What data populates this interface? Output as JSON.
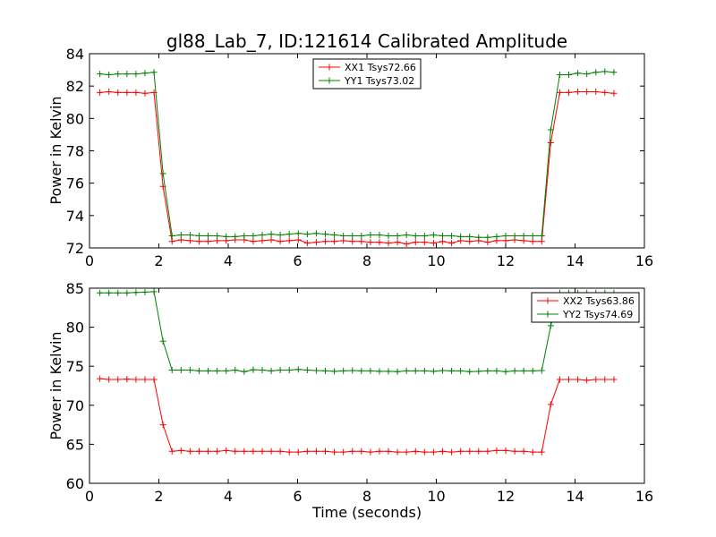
{
  "title": "gl88_Lab_7, ID:121614 Calibrated Amplitude",
  "colors": {
    "red": "#ff0000",
    "green": "#008000"
  },
  "chart_data": [
    {
      "type": "line",
      "title": "gl88_Lab_7, ID:121614 Calibrated Amplitude",
      "xlabel": "",
      "ylabel": "Power in Kelvin",
      "xlim": [
        0,
        16
      ],
      "ylim": [
        72,
        84
      ],
      "xticks": [
        "0",
        "2",
        "4",
        "6",
        "8",
        "10",
        "12",
        "14",
        "16"
      ],
      "yticks": [
        "72",
        "74",
        "76",
        "78",
        "80",
        "82",
        "84"
      ],
      "grid": false,
      "legend_position": "top-center",
      "x": [
        0.3,
        0.56,
        0.82,
        1.08,
        1.34,
        1.6,
        1.86,
        2.12,
        2.38,
        2.64,
        2.9,
        3.16,
        3.42,
        3.68,
        3.94,
        4.2,
        4.46,
        4.72,
        4.98,
        5.24,
        5.5,
        5.76,
        6.02,
        6.28,
        6.54,
        6.8,
        7.06,
        7.32,
        7.58,
        7.84,
        8.1,
        8.36,
        8.62,
        8.88,
        9.14,
        9.4,
        9.66,
        9.92,
        10.18,
        10.44,
        10.7,
        10.96,
        11.22,
        11.48,
        11.74,
        12.0,
        12.26,
        12.52,
        12.78,
        13.04,
        13.3,
        13.56,
        13.82,
        14.08,
        14.34,
        14.6,
        14.86,
        15.12
      ],
      "series": [
        {
          "name": "XX1 Tsys72.66",
          "color": "#ff0000",
          "values": [
            81.6,
            81.65,
            81.6,
            81.6,
            81.6,
            81.55,
            81.6,
            75.8,
            72.4,
            72.5,
            72.45,
            72.4,
            72.4,
            72.45,
            72.45,
            72.5,
            72.5,
            72.4,
            72.45,
            72.5,
            72.4,
            72.45,
            72.5,
            72.3,
            72.35,
            72.4,
            72.4,
            72.45,
            72.4,
            72.4,
            72.35,
            72.35,
            72.3,
            72.35,
            72.25,
            72.35,
            72.35,
            72.3,
            72.4,
            72.3,
            72.45,
            72.4,
            72.45,
            72.35,
            72.45,
            72.45,
            72.5,
            72.45,
            72.4,
            72.4,
            78.5,
            81.6,
            81.6,
            81.65,
            81.65,
            81.65,
            81.6,
            81.55
          ]
        },
        {
          "name": "YY1 Tsys73.02",
          "color": "#008000",
          "values": [
            82.75,
            82.7,
            82.75,
            82.75,
            82.75,
            82.8,
            82.85,
            76.6,
            72.75,
            72.8,
            72.8,
            72.75,
            72.75,
            72.75,
            72.7,
            72.7,
            72.75,
            72.75,
            72.8,
            72.85,
            72.8,
            72.85,
            72.9,
            72.85,
            72.9,
            72.85,
            72.8,
            72.75,
            72.75,
            72.75,
            72.8,
            72.8,
            72.75,
            72.75,
            72.8,
            72.75,
            72.75,
            72.8,
            72.75,
            72.75,
            72.7,
            72.7,
            72.65,
            72.65,
            72.7,
            72.75,
            72.75,
            72.75,
            72.75,
            72.75,
            79.3,
            82.7,
            82.7,
            82.8,
            82.75,
            82.85,
            82.9,
            82.85
          ]
        }
      ]
    },
    {
      "type": "line",
      "title": "",
      "xlabel": "Time (seconds)",
      "ylabel": "Power in Kelvin",
      "xlim": [
        0,
        16
      ],
      "ylim": [
        60,
        85
      ],
      "xticks": [
        "0",
        "2",
        "4",
        "6",
        "8",
        "10",
        "12",
        "14",
        "16"
      ],
      "yticks": [
        "60",
        "65",
        "70",
        "75",
        "80",
        "85"
      ],
      "grid": false,
      "legend_position": "top-right",
      "x": [
        0.3,
        0.56,
        0.82,
        1.08,
        1.34,
        1.6,
        1.86,
        2.12,
        2.38,
        2.64,
        2.9,
        3.16,
        3.42,
        3.68,
        3.94,
        4.2,
        4.46,
        4.72,
        4.98,
        5.24,
        5.5,
        5.76,
        6.02,
        6.28,
        6.54,
        6.8,
        7.06,
        7.32,
        7.58,
        7.84,
        8.1,
        8.36,
        8.62,
        8.88,
        9.14,
        9.4,
        9.66,
        9.92,
        10.18,
        10.44,
        10.7,
        10.96,
        11.22,
        11.48,
        11.74,
        12.0,
        12.26,
        12.52,
        12.78,
        13.04,
        13.3,
        13.56,
        13.82,
        14.08,
        14.34,
        14.6,
        14.86,
        15.12
      ],
      "series": [
        {
          "name": "XX2 Tsys63.86",
          "color": "#ff0000",
          "values": [
            73.4,
            73.3,
            73.3,
            73.35,
            73.3,
            73.3,
            73.3,
            67.5,
            64.1,
            64.2,
            64.1,
            64.1,
            64.1,
            64.1,
            64.2,
            64.1,
            64.1,
            64.1,
            64.1,
            64.1,
            64.1,
            64.0,
            64.0,
            64.1,
            64.1,
            64.1,
            64.0,
            64.0,
            64.1,
            64.1,
            64.0,
            64.1,
            64.1,
            64.0,
            64.0,
            64.1,
            64.0,
            64.0,
            64.1,
            64.0,
            64.1,
            64.1,
            64.1,
            64.1,
            64.2,
            64.2,
            64.1,
            64.1,
            64.0,
            64.0,
            70.1,
            73.3,
            73.3,
            73.3,
            73.2,
            73.3,
            73.3,
            73.3
          ]
        },
        {
          "name": "YY2 Tsys74.69",
          "color": "#008000",
          "values": [
            84.4,
            84.4,
            84.4,
            84.4,
            84.45,
            84.5,
            84.55,
            78.2,
            74.5,
            74.5,
            74.5,
            74.4,
            74.4,
            74.4,
            74.4,
            74.5,
            74.3,
            74.55,
            74.5,
            74.4,
            74.5,
            74.5,
            74.6,
            74.5,
            74.45,
            74.4,
            74.35,
            74.4,
            74.45,
            74.4,
            74.4,
            74.35,
            74.35,
            74.3,
            74.4,
            74.4,
            74.4,
            74.35,
            74.45,
            74.4,
            74.4,
            74.3,
            74.35,
            74.4,
            74.4,
            74.3,
            74.4,
            74.4,
            74.4,
            74.45,
            80.2,
            84.4,
            84.4,
            84.4,
            84.4,
            84.4,
            84.4,
            84.4
          ]
        }
      ]
    }
  ]
}
